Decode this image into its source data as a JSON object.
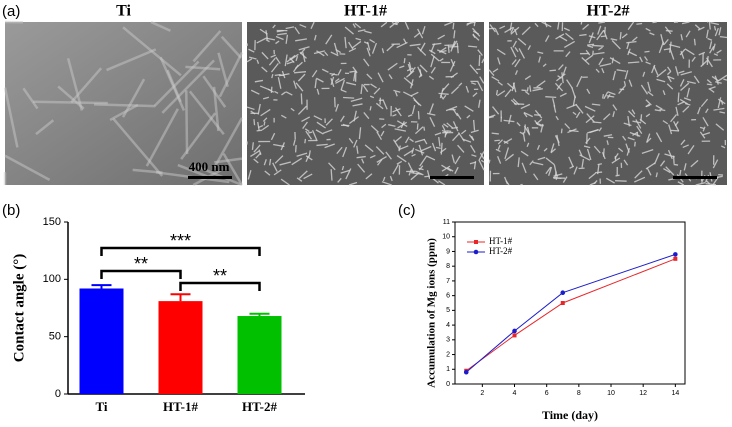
{
  "panel_labels": [
    "(a)",
    "(b)",
    "(c)"
  ],
  "images": [
    {
      "title": "Ti"
    },
    {
      "title": "HT-1#"
    },
    {
      "title": "HT-2#"
    }
  ],
  "scale_bar": "400 nm",
  "chart_data": [
    {
      "type": "bar",
      "ylabel": "Contact angle (°)",
      "categories": [
        "Ti",
        "HT-1#",
        "HT-2#"
      ],
      "values": [
        92,
        81,
        68
      ],
      "errors": [
        3,
        6,
        2
      ],
      "colors": [
        "#0000ff",
        "#ff0000",
        "#00c000"
      ],
      "ylim": [
        0,
        150
      ],
      "yticks": [
        0,
        50,
        100,
        150
      ],
      "annotations": [
        {
          "text": "***",
          "groups": [
            0,
            2
          ]
        },
        {
          "text": "**",
          "groups": [
            0,
            1
          ]
        },
        {
          "text": "**",
          "groups": [
            1,
            2
          ]
        }
      ]
    },
    {
      "type": "line",
      "xlabel": "Time (day)",
      "ylabel": "Accumulation of Mg ions (ppm)",
      "x": [
        1,
        4,
        7,
        14
      ],
      "series": [
        {
          "name": "HT-1#",
          "color": "#e8262a",
          "values": [
            0.9,
            3.3,
            5.5,
            8.5
          ]
        },
        {
          "name": "HT-2#",
          "color": "#1c1ccc",
          "values": [
            0.8,
            3.6,
            6.2,
            8.8
          ]
        }
      ],
      "xlim": [
        0.3,
        14.6
      ],
      "xticks": [
        2,
        4,
        6,
        8,
        10,
        12,
        14
      ],
      "ylim": [
        0,
        11
      ],
      "yticks": [
        0,
        1,
        2,
        3,
        4,
        5,
        6,
        7,
        8,
        9,
        10,
        11
      ],
      "legend": "upper left"
    }
  ]
}
